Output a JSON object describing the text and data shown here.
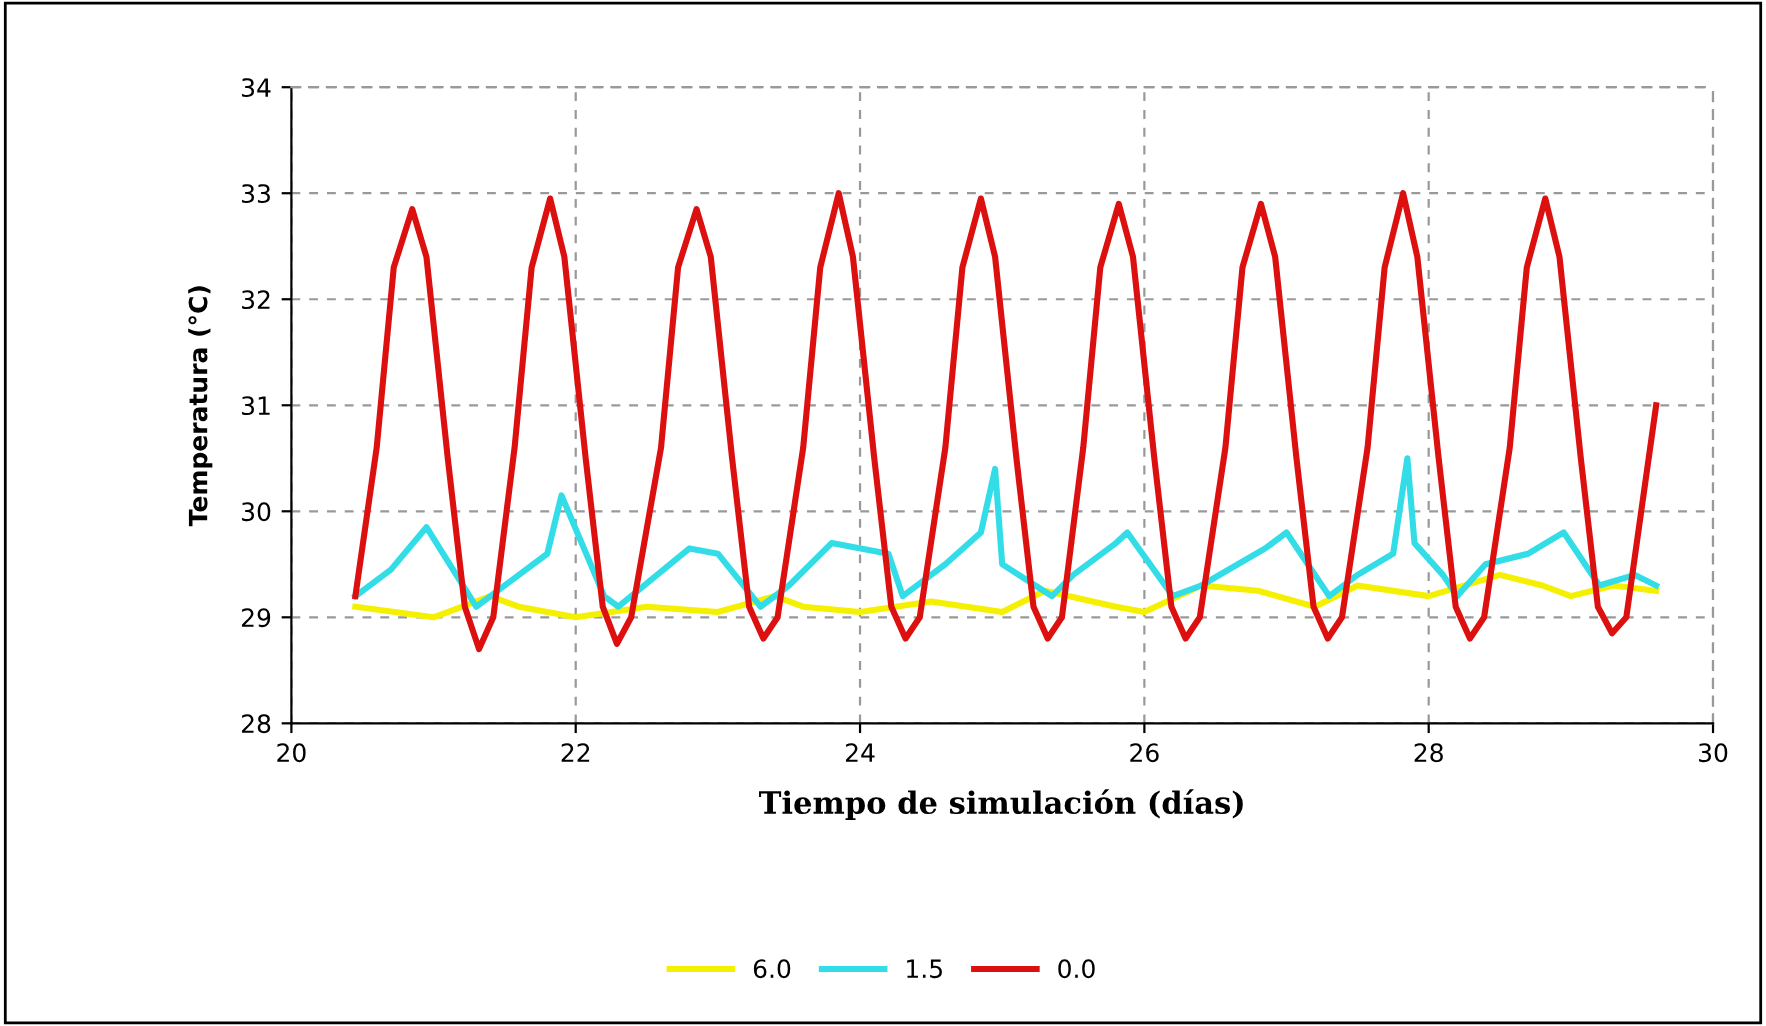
{
  "chart_data": {
    "type": "line",
    "xlabel": "Tiempo de simulación (días)",
    "ylabel": "Temperatura (°C)",
    "xlim": [
      20,
      30
    ],
    "xticks": [
      20,
      22,
      24,
      26,
      28,
      30
    ],
    "ylim": [
      28,
      34
    ],
    "yticks": [
      28,
      29,
      30,
      31,
      32,
      33,
      34
    ],
    "grid": true,
    "legend": "bottom",
    "marker": "none",
    "line_style": "solid",
    "series": [
      {
        "name": "6.0",
        "color": "#f5f000",
        "x": [
          20.45,
          21.0,
          21.4,
          21.6,
          22.0,
          22.5,
          23.0,
          23.4,
          23.6,
          24.0,
          24.5,
          25.0,
          25.3,
          25.8,
          26.0,
          26.4,
          26.8,
          27.2,
          27.5,
          28.0,
          28.5,
          28.8,
          29.0,
          29.3,
          29.6
        ],
        "values": [
          29.1,
          29.0,
          29.2,
          29.1,
          29.0,
          29.1,
          29.05,
          29.2,
          29.1,
          29.05,
          29.15,
          29.05,
          29.25,
          29.1,
          29.05,
          29.3,
          29.25,
          29.1,
          29.3,
          29.2,
          29.4,
          29.3,
          29.2,
          29.3,
          29.25
        ]
      },
      {
        "name": "1.5",
        "color": "#33dde8",
        "x": [
          20.45,
          20.7,
          20.95,
          21.3,
          21.8,
          21.9,
          22.2,
          22.3,
          22.8,
          23.0,
          23.3,
          23.5,
          23.8,
          24.2,
          24.3,
          24.6,
          24.85,
          24.95,
          25.0,
          25.35,
          25.5,
          25.8,
          25.88,
          26.2,
          26.4,
          26.85,
          27.0,
          27.3,
          27.5,
          27.75,
          27.85,
          27.9,
          28.1,
          28.2,
          28.4,
          28.7,
          28.95,
          29.2,
          29.45,
          29.6
        ],
        "values": [
          29.2,
          29.45,
          29.85,
          29.1,
          29.6,
          30.15,
          29.2,
          29.1,
          29.65,
          29.6,
          29.1,
          29.3,
          29.7,
          29.6,
          29.2,
          29.5,
          29.8,
          30.4,
          29.5,
          29.2,
          29.4,
          29.7,
          29.8,
          29.2,
          29.3,
          29.65,
          29.8,
          29.2,
          29.4,
          29.6,
          30.5,
          29.7,
          29.4,
          29.2,
          29.5,
          29.6,
          29.8,
          29.3,
          29.4,
          29.3
        ]
      },
      {
        "name": "0.0",
        "color": "#dd1010",
        "x": [
          20.45,
          20.6,
          20.72,
          20.85,
          20.95,
          21.1,
          21.22,
          21.32,
          21.42,
          21.57,
          21.69,
          21.82,
          21.92,
          22.07,
          22.19,
          22.29,
          22.39,
          22.6,
          22.72,
          22.85,
          22.95,
          23.1,
          23.22,
          23.32,
          23.42,
          23.6,
          23.72,
          23.85,
          23.95,
          24.1,
          24.22,
          24.32,
          24.42,
          24.6,
          24.72,
          24.85,
          24.95,
          25.1,
          25.22,
          25.32,
          25.42,
          25.57,
          25.69,
          25.82,
          25.92,
          26.07,
          26.19,
          26.29,
          26.39,
          26.57,
          26.69,
          26.82,
          26.92,
          27.07,
          27.19,
          27.29,
          27.39,
          27.57,
          27.69,
          27.82,
          27.92,
          28.07,
          28.19,
          28.29,
          28.39,
          28.57,
          28.69,
          28.82,
          28.92,
          29.07,
          29.19,
          29.29,
          29.39,
          29.6
        ],
        "values": [
          29.2,
          30.6,
          32.3,
          32.85,
          32.4,
          30.5,
          29.1,
          28.7,
          29.0,
          30.6,
          32.3,
          32.95,
          32.4,
          30.5,
          29.1,
          28.75,
          29.0,
          30.6,
          32.3,
          32.85,
          32.4,
          30.5,
          29.1,
          28.8,
          29.0,
          30.6,
          32.3,
          33.0,
          32.4,
          30.5,
          29.1,
          28.8,
          29.0,
          30.6,
          32.3,
          32.95,
          32.4,
          30.5,
          29.1,
          28.8,
          29.0,
          30.6,
          32.3,
          32.9,
          32.4,
          30.5,
          29.1,
          28.8,
          29.0,
          30.6,
          32.3,
          32.9,
          32.4,
          30.5,
          29.1,
          28.8,
          29.0,
          30.6,
          32.3,
          33.0,
          32.4,
          30.5,
          29.1,
          28.8,
          29.0,
          30.6,
          32.3,
          32.95,
          32.4,
          30.5,
          29.1,
          28.85,
          29.0,
          31.0
        ]
      }
    ]
  }
}
